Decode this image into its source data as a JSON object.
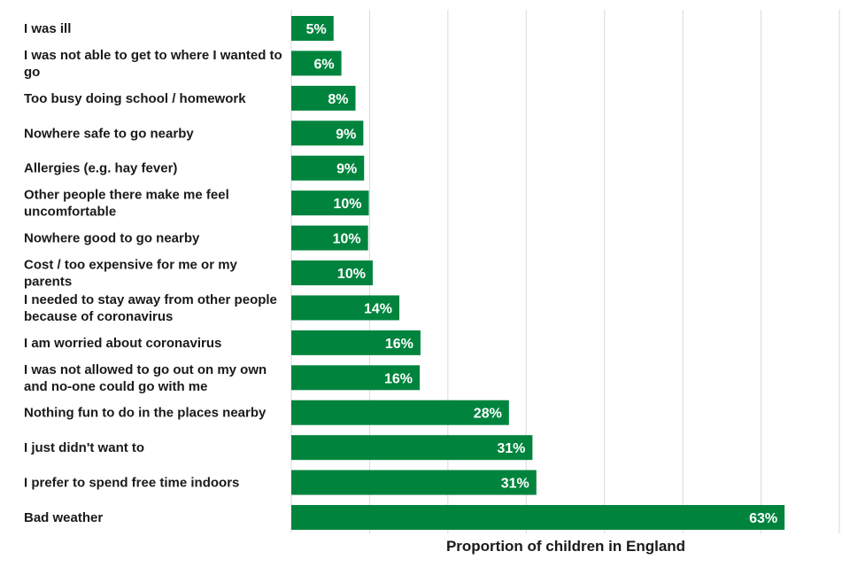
{
  "chart_data": {
    "type": "bar",
    "orientation": "horizontal",
    "categories": [
      "I was ill",
      "I was not able to get to where I wanted to go",
      "Too busy doing school / homework",
      "Nowhere safe to go nearby",
      "Allergies (e.g. hay fever)",
      "Other people there make me feel uncomfortable",
      "Nowhere good to go nearby",
      "Cost / too expensive for me or my parents",
      "I needed to stay away from other people because of coronavirus",
      "I am worried about coronavirus",
      "I was not allowed to go out on my own and no-one could go with me",
      "Nothing fun to do in the places nearby",
      "I just didn't want to",
      "I prefer to spend free time indoors",
      "Bad weather"
    ],
    "values": [
      5.4,
      6.4,
      8.2,
      9.2,
      9.3,
      9.9,
      9.8,
      10.4,
      13.8,
      16.5,
      16.4,
      27.8,
      30.8,
      31.3,
      63.0
    ],
    "data_labels": [
      "5%",
      "6%",
      "8%",
      "9%",
      "9%",
      "10%",
      "10%",
      "10%",
      "14%",
      "16%",
      "16%",
      "28%",
      "31%",
      "31%",
      "63%"
    ],
    "xlabel": "Proportion of children in England",
    "ylabel": "",
    "xlim": [
      0,
      70
    ],
    "grid_step": 10,
    "grid": true,
    "bar_color": "#00843D",
    "grid_color": "#d9d9d9"
  }
}
